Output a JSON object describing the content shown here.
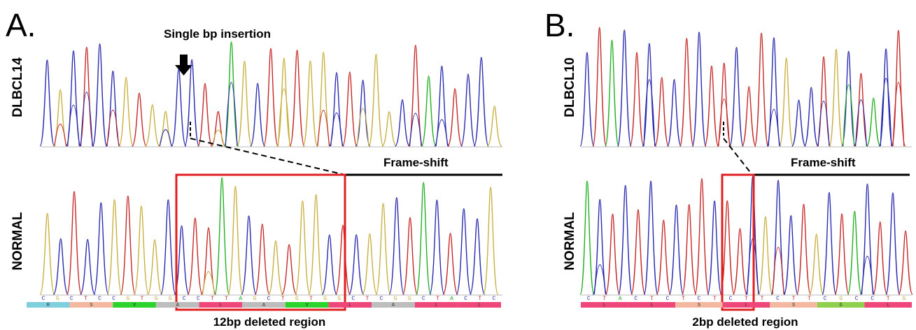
{
  "panel_a": {
    "letter": "A.",
    "top_sample": "DLBCL14",
    "bottom_sample": "NORMAL",
    "arrow_label": "Single bp insertion",
    "frameshift_label": "Frame-shift",
    "region_label": "12bp deleted region",
    "bases": [
      "C",
      "G",
      "C",
      "T",
      "C",
      "C",
      "G",
      "T",
      "G",
      "G",
      "C",
      "C",
      "T",
      "T",
      "A",
      "G",
      "C",
      "T",
      "G",
      "T",
      "G",
      "G",
      "C",
      "T",
      "C",
      "G",
      "G",
      "C",
      "T",
      "A",
      "C",
      "T",
      "C"
    ],
    "aa_blocks": [
      {
        "label": "R",
        "color": "#7fd0dc"
      },
      {
        "label": "S",
        "color": "#f4b8a0"
      },
      {
        "label": "V",
        "color": "#2bd42b"
      },
      {
        "label": "A",
        "color": "#bdbdbd"
      },
      {
        "label": "L",
        "color": "#f0477a"
      },
      {
        "label": "A",
        "color": "#bdbdbd"
      },
      {
        "label": "V",
        "color": "#2bd42b"
      },
      {
        "label": "L",
        "color": "#f0477a"
      },
      {
        "label": "A",
        "color": "#bdbdbd"
      },
      {
        "label": "L",
        "color": "#f0477a"
      },
      {
        "label": "L",
        "color": "#f0477a"
      }
    ]
  },
  "panel_b": {
    "letter": "B.",
    "top_sample": "DLBCL10",
    "bottom_sample": "NORMAL",
    "frameshift_label": "Frame-shift",
    "region_label": "2bp deleted region",
    "bases": [
      "C",
      "T",
      "A",
      "C",
      "T",
      "C",
      "T",
      "C",
      "T",
      "C",
      "T",
      "T",
      "C",
      "T",
      "T",
      "C",
      "G",
      "C",
      "C",
      "T",
      "G"
    ],
    "aa_blocks": [
      {
        "label": "L",
        "color": "#f0477a"
      },
      {
        "label": "L",
        "color": "#f0477a"
      },
      {
        "label": "S",
        "color": "#f4b8a0"
      },
      {
        "label": "L",
        "color": "#f0477a"
      },
      {
        "label": "S",
        "color": "#f4b8a0"
      },
      {
        "label": "G",
        "color": "#8fd14f"
      },
      {
        "label": "L",
        "color": "#f0477a"
      }
    ]
  },
  "colors": {
    "A": "#22b022",
    "C": "#2a2ab0",
    "G": "#c8b040",
    "T": "#c62828",
    "box": "#e02020",
    "line": "#000000"
  }
}
